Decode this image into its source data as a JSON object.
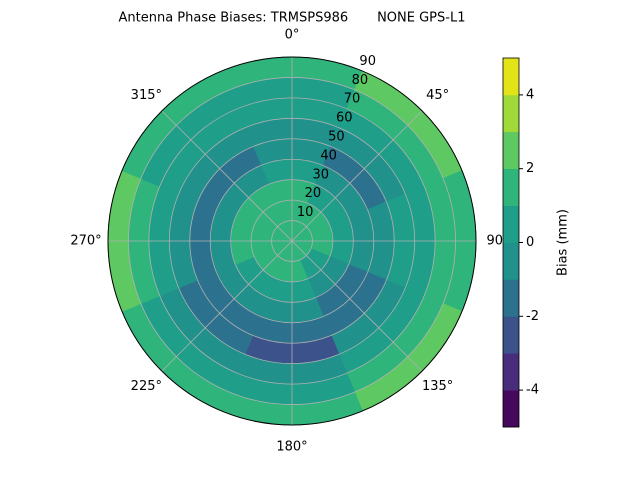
{
  "chart_data": {
    "type": "polar-contour",
    "title": "Antenna Phase Biases: TRMSPS986       NONE GPS-L1",
    "thetaticks": [
      {
        "value": 0,
        "label": "0°"
      },
      {
        "value": 45,
        "label": "45°"
      },
      {
        "value": 90,
        "label": "90°"
      },
      {
        "value": 135,
        "label": "135°"
      },
      {
        "value": 180,
        "label": "180°"
      },
      {
        "value": 225,
        "label": "225°"
      },
      {
        "value": 270,
        "label": "270°"
      },
      {
        "value": 315,
        "label": "315°"
      }
    ],
    "rlim": [
      0,
      90
    ],
    "rticks": [
      10,
      20,
      30,
      40,
      50,
      60,
      70,
      80,
      90
    ],
    "grid": true,
    "values": [
      [
        1.5,
        1.5,
        1.5,
        1.5,
        1.5,
        1.5,
        1.5,
        1.5
      ],
      [
        1.5,
        1.5,
        1.5,
        0.5,
        1.5,
        1.5,
        1.5,
        1.5
      ],
      [
        1.5,
        0.5,
        0.5,
        -0.5,
        0.5,
        0.5,
        1.5,
        1.5
      ],
      [
        0.5,
        -0.5,
        -0.5,
        -1.5,
        -0.5,
        -0.5,
        -0.5,
        -0.5
      ],
      [
        -0.5,
        -1.5,
        -0.5,
        -1.5,
        -1.5,
        -1.5,
        -1.5,
        -1.5
      ],
      [
        -0.5,
        -0.5,
        0.5,
        -0.5,
        -2.5,
        -1.5,
        -0.5,
        -0.5
      ],
      [
        0.5,
        0.5,
        0.5,
        0.5,
        -0.5,
        -0.5,
        0.5,
        0.5
      ],
      [
        0.5,
        1.5,
        1.5,
        1.5,
        0.5,
        0.5,
        1.5,
        0.5
      ],
      [
        1.5,
        2.5,
        1.5,
        2.5,
        1.5,
        1.5,
        2.5,
        1.5
      ]
    ],
    "colorbar": {
      "label": "Bias (mm)",
      "lim": [
        -5,
        5
      ],
      "ticks": [
        -4,
        -2,
        0,
        2,
        4
      ],
      "colors": [
        "#46085c",
        "#472d7b",
        "#3b528b",
        "#2c728e",
        "#21918c",
        "#1f9e89",
        "#2fb47c",
        "#5ec962",
        "#a0da39",
        "#e2e418"
      ]
    }
  }
}
